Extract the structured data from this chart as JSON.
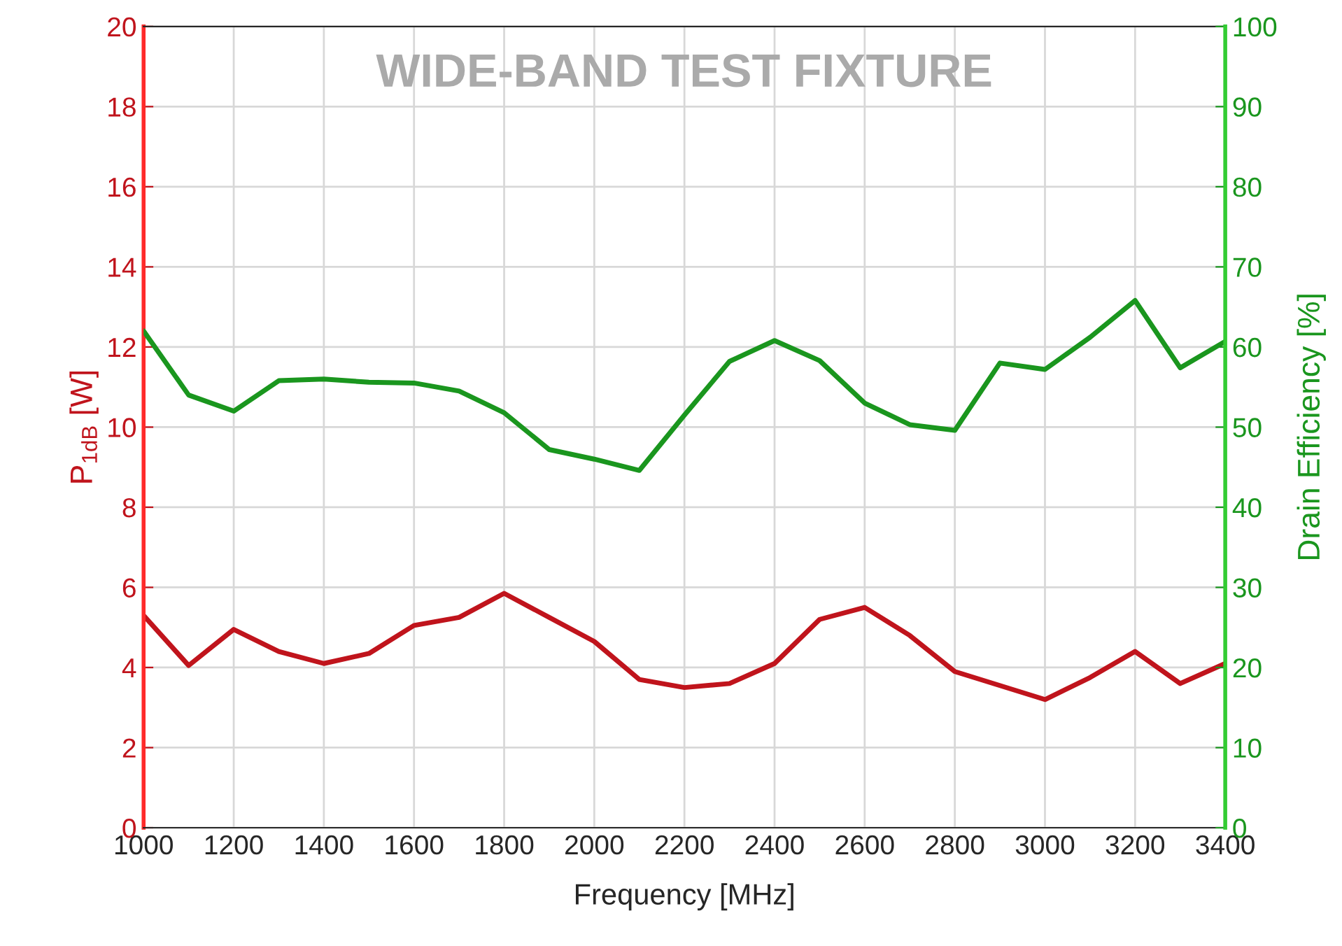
{
  "chart_data": {
    "type": "line",
    "title": "WIDE-BAND TEST FIXTURE",
    "xlabel": "Frequency [MHz]",
    "ylabel": "P$_{1dB}$ [W]",
    "y2label": "Drain Efficiency [%]",
    "x": [
      1000,
      1100,
      1200,
      1300,
      1400,
      1500,
      1600,
      1700,
      1800,
      1900,
      2000,
      2100,
      2200,
      2300,
      2400,
      2500,
      2600,
      2700,
      2800,
      2900,
      3000,
      3100,
      3200,
      3300,
      3400
    ],
    "series": [
      {
        "color": "#c0141c",
        "values": [
          5.3,
          4.05,
          4.95,
          4.4,
          4.1,
          4.35,
          5.05,
          5.25,
          5.85,
          5.25,
          4.65,
          3.7,
          3.5,
          3.6,
          4.1,
          5.2,
          5.5,
          4.8,
          3.9,
          3.55,
          3.2,
          3.75,
          4.4,
          3.6,
          4.1
        ]
      },
      {
        "color": "#1a961e",
        "axis": "y2",
        "values": [
          62,
          54,
          52,
          55.8,
          56,
          55.6,
          55.5,
          54.5,
          51.8,
          47.2,
          46,
          44.6,
          51.5,
          58.2,
          60.8,
          58.3,
          53,
          50.3,
          49.6,
          58,
          57.2,
          61.2,
          65.8,
          57.4,
          60.7
        ]
      }
    ],
    "xlim": [
      1000,
      3400
    ],
    "xticks": [
      1000,
      1200,
      1400,
      1600,
      1800,
      2000,
      2200,
      2400,
      2600,
      2800,
      3000,
      3200,
      3400
    ],
    "ylim": [
      0,
      20
    ],
    "yticks": [
      0,
      2,
      4,
      6,
      8,
      10,
      12,
      14,
      16,
      18,
      20
    ],
    "y2lim": [
      0,
      100
    ],
    "y2ticks": [
      0,
      10,
      20,
      30,
      40,
      50,
      60,
      70,
      80,
      90,
      100
    ],
    "grid": true,
    "line_style": "solid",
    "marker": "none"
  }
}
